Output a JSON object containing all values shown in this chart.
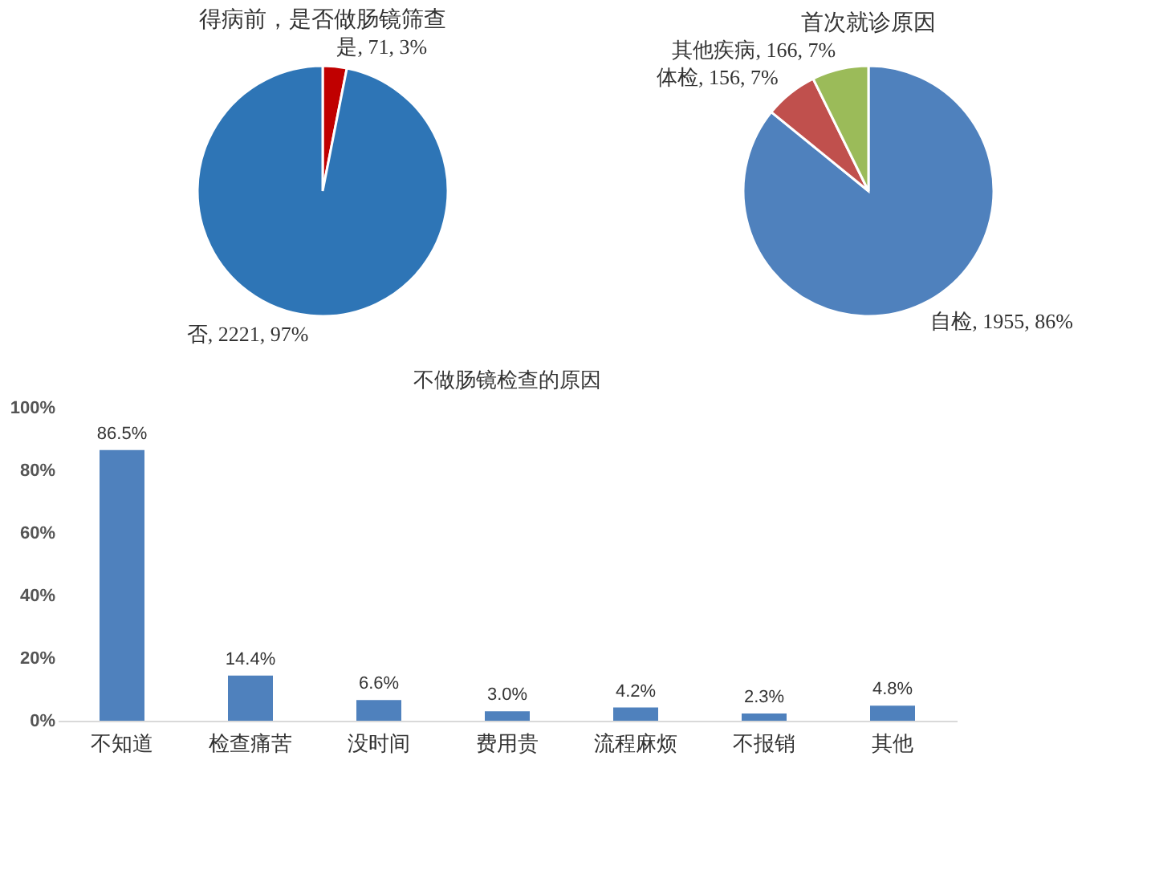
{
  "chart_data": [
    {
      "type": "pie",
      "title": "得病前，是否做肠镜筛查",
      "categories": [
        "是",
        "否"
      ],
      "values": [
        71,
        2221
      ],
      "colors": [
        "#c00000",
        "#2e75b6"
      ],
      "value_labels": [
        "71, 3%",
        "2221, 97%"
      ]
    },
    {
      "type": "pie",
      "title": "首次就诊原因",
      "categories": [
        "自检",
        "体检",
        "其他疾病"
      ],
      "values": [
        1955,
        156,
        166
      ],
      "colors": [
        "#4f81bd",
        "#c0504d",
        "#9bbb59"
      ],
      "value_labels": [
        "1955, 86%",
        "156, 7%",
        "166, 7%"
      ]
    },
    {
      "type": "bar",
      "title": "不做肠镜检查的原因",
      "categories": [
        "不知道",
        "检查痛苦",
        "没时间",
        "费用贵",
        "流程麻烦",
        "不报销",
        "其他"
      ],
      "values": [
        86.5,
        14.4,
        6.6,
        3.0,
        4.2,
        2.3,
        4.8
      ],
      "color": "#4f81bd",
      "value_labels": [
        "86.5%",
        "14.4%",
        "6.6%",
        "3.0%",
        "4.2%",
        "2.3%",
        "4.8%"
      ],
      "ylim": [
        0,
        100
      ],
      "yticks": [
        {
          "value": 0,
          "label": "0%"
        },
        {
          "value": 20,
          "label": "20%"
        },
        {
          "value": 40,
          "label": "40%"
        },
        {
          "value": 60,
          "label": "60%"
        },
        {
          "value": 80,
          "label": "80%"
        },
        {
          "value": 100,
          "label": "100%"
        }
      ],
      "grid": false
    }
  ]
}
